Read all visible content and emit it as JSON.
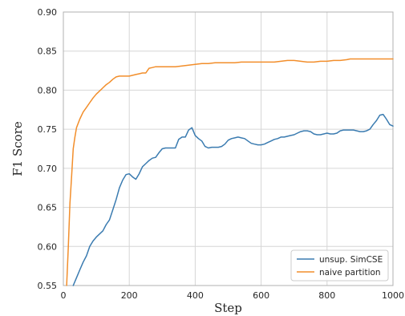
{
  "chart_data": {
    "type": "line",
    "title": "",
    "xlabel": "Step",
    "ylabel": "F1 Score",
    "xlim": [
      0,
      1000
    ],
    "ylim": [
      0.55,
      0.9
    ],
    "xticks": [
      0,
      200,
      400,
      600,
      800,
      1000
    ],
    "yticks": [
      0.55,
      0.6,
      0.65,
      0.7,
      0.75,
      0.8,
      0.85,
      0.9
    ],
    "xtick_labels": [
      "0",
      "200",
      "400",
      "600",
      "800",
      "1000"
    ],
    "ytick_labels": [
      "0.55",
      "0.60",
      "0.65",
      "0.70",
      "0.75",
      "0.80",
      "0.85",
      "0.90"
    ],
    "grid": true,
    "legend_position": "bottom-right",
    "series": [
      {
        "name": "unsup. SimCSE",
        "color": "#3a7bb0",
        "x": [
          30,
          40,
          50,
          60,
          70,
          80,
          90,
          100,
          110,
          120,
          130,
          140,
          150,
          160,
          170,
          180,
          190,
          200,
          210,
          220,
          230,
          240,
          250,
          260,
          270,
          280,
          290,
          300,
          310,
          320,
          330,
          340,
          350,
          360,
          370,
          380,
          390,
          400,
          410,
          420,
          430,
          440,
          450,
          460,
          470,
          480,
          490,
          500,
          510,
          520,
          530,
          540,
          550,
          560,
          570,
          580,
          590,
          600,
          610,
          620,
          630,
          640,
          650,
          660,
          670,
          680,
          690,
          700,
          710,
          720,
          730,
          740,
          750,
          760,
          770,
          780,
          790,
          800,
          810,
          820,
          830,
          840,
          850,
          860,
          870,
          880,
          890,
          900,
          910,
          920,
          930,
          940,
          950,
          960,
          970,
          980,
          990,
          1000
        ],
        "values": [
          0.55,
          0.56,
          0.57,
          0.58,
          0.588,
          0.6,
          0.607,
          0.612,
          0.616,
          0.62,
          0.628,
          0.634,
          0.647,
          0.66,
          0.675,
          0.685,
          0.692,
          0.693,
          0.689,
          0.686,
          0.693,
          0.702,
          0.706,
          0.71,
          0.713,
          0.714,
          0.72,
          0.725,
          0.726,
          0.726,
          0.726,
          0.726,
          0.737,
          0.74,
          0.74,
          0.749,
          0.752,
          0.742,
          0.738,
          0.735,
          0.728,
          0.726,
          0.727,
          0.727,
          0.727,
          0.728,
          0.731,
          0.736,
          0.738,
          0.739,
          0.74,
          0.739,
          0.738,
          0.735,
          0.732,
          0.731,
          0.73,
          0.73,
          0.731,
          0.733,
          0.735,
          0.737,
          0.738,
          0.74,
          0.74,
          0.741,
          0.742,
          0.743,
          0.745,
          0.747,
          0.748,
          0.748,
          0.747,
          0.744,
          0.743,
          0.743,
          0.744,
          0.745,
          0.744,
          0.744,
          0.745,
          0.748,
          0.749,
          0.749,
          0.749,
          0.749,
          0.748,
          0.747,
          0.747,
          0.748,
          0.75,
          0.756,
          0.761,
          0.768,
          0.769,
          0.763,
          0.756,
          0.754
        ]
      },
      {
        "name": "naive partition",
        "color": "#f28e2b",
        "x": [
          10,
          15,
          20,
          25,
          30,
          35,
          40,
          50,
          60,
          70,
          80,
          90,
          100,
          110,
          120,
          130,
          140,
          150,
          160,
          170,
          180,
          190,
          200,
          210,
          220,
          230,
          240,
          250,
          255,
          260,
          270,
          280,
          290,
          300,
          320,
          340,
          360,
          380,
          400,
          420,
          440,
          460,
          480,
          500,
          520,
          540,
          560,
          580,
          600,
          620,
          640,
          660,
          680,
          700,
          720,
          740,
          760,
          780,
          800,
          820,
          840,
          860,
          870,
          880,
          900,
          920,
          940,
          960,
          980,
          1000
        ],
        "values": [
          0.55,
          0.6,
          0.655,
          0.69,
          0.725,
          0.74,
          0.752,
          0.763,
          0.772,
          0.778,
          0.784,
          0.79,
          0.795,
          0.799,
          0.803,
          0.807,
          0.81,
          0.814,
          0.817,
          0.818,
          0.818,
          0.818,
          0.818,
          0.819,
          0.82,
          0.821,
          0.822,
          0.822,
          0.825,
          0.828,
          0.829,
          0.83,
          0.83,
          0.83,
          0.83,
          0.83,
          0.831,
          0.832,
          0.833,
          0.834,
          0.834,
          0.835,
          0.835,
          0.835,
          0.835,
          0.836,
          0.836,
          0.836,
          0.836,
          0.836,
          0.836,
          0.837,
          0.838,
          0.838,
          0.837,
          0.836,
          0.836,
          0.837,
          0.837,
          0.838,
          0.838,
          0.839,
          0.84,
          0.84,
          0.84,
          0.84,
          0.84,
          0.84,
          0.84,
          0.84
        ]
      }
    ]
  }
}
